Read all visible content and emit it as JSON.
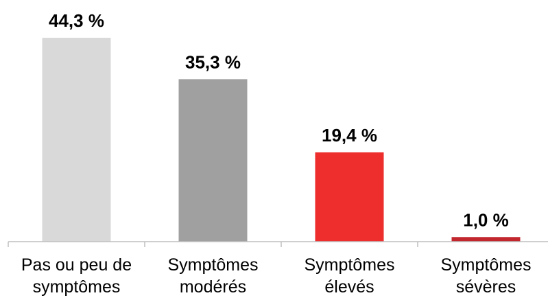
{
  "chart_data": {
    "type": "bar",
    "categories": [
      [
        "Pas ou peu de",
        "symptômes"
      ],
      [
        "Symptômes",
        "modérés"
      ],
      [
        "Symptômes",
        "élevés"
      ],
      [
        "Symptômes",
        "sévères"
      ]
    ],
    "values": [
      44.3,
      35.3,
      19.4,
      1.0
    ],
    "data_labels": [
      "44,3 %",
      "35,3 %",
      "19,4 %",
      "1,0 %"
    ],
    "colors": [
      "#d9d9d9",
      "#a0a0a0",
      "#ee2d2d",
      "#c1272d"
    ],
    "ylim": [
      0,
      44.3
    ],
    "grid": false,
    "axis_color": "#bfbfbf",
    "title": "",
    "xlabel": "",
    "ylabel": ""
  }
}
